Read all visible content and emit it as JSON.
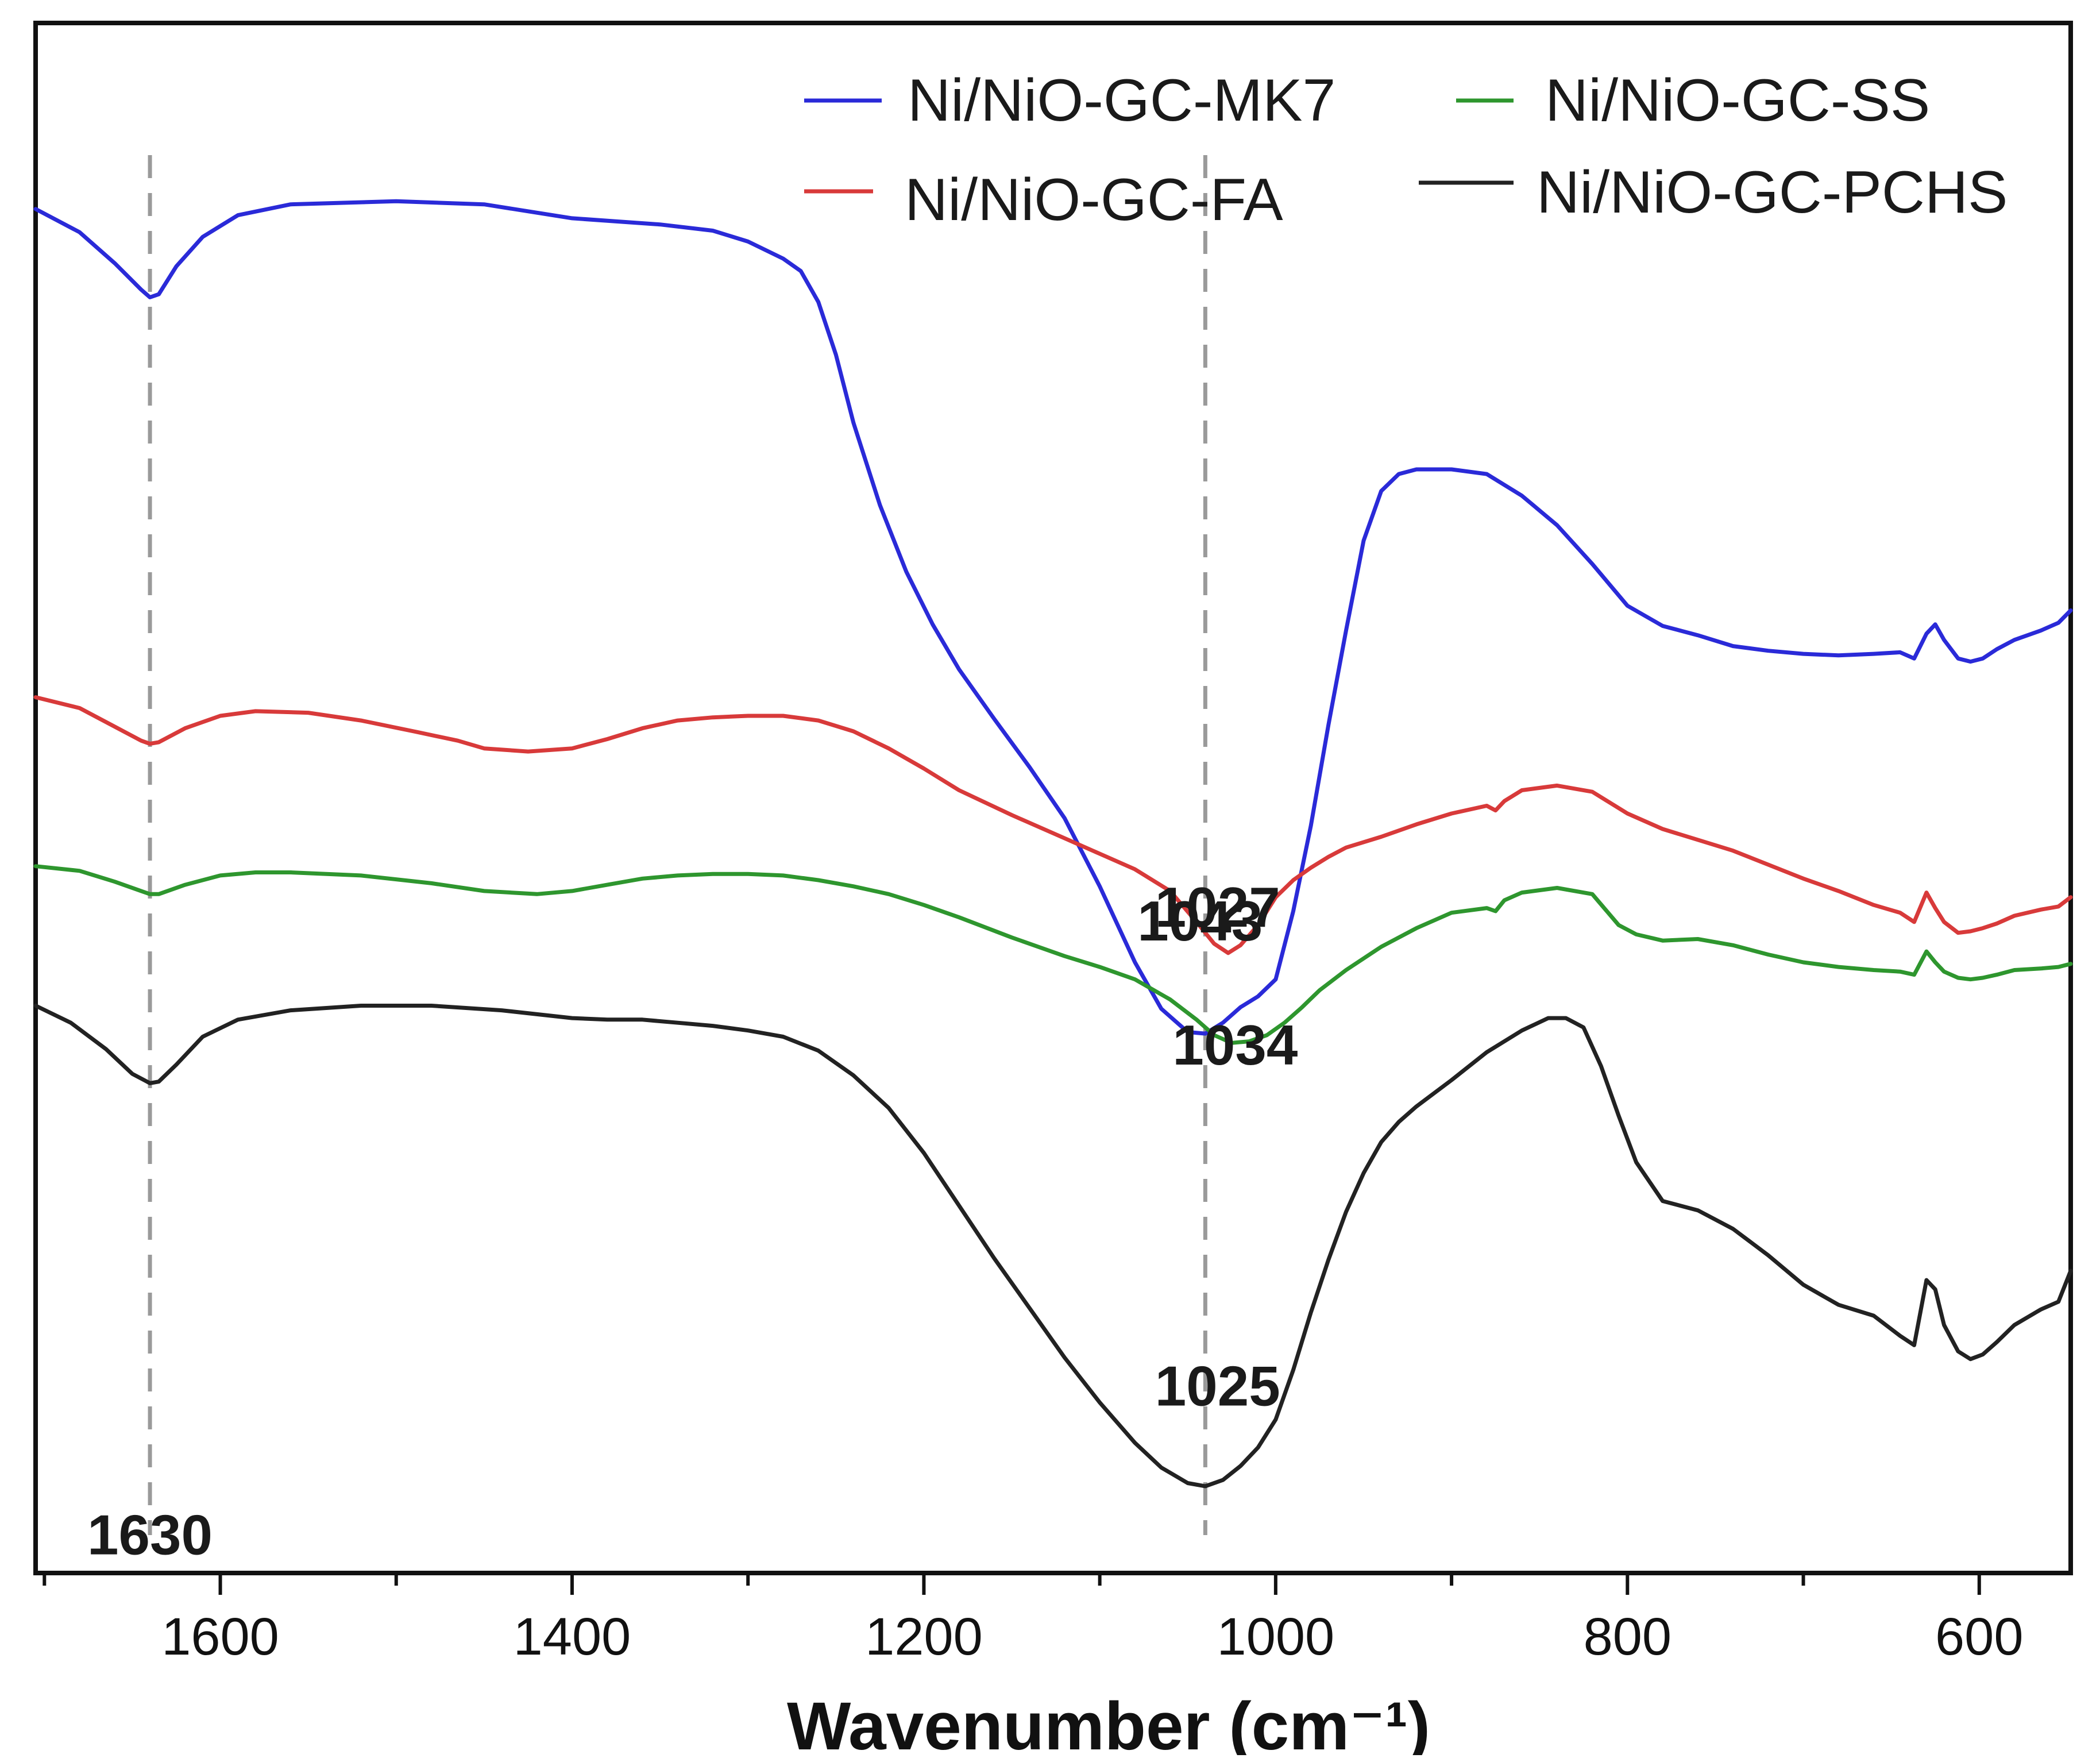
{
  "chart_data": {
    "type": "line",
    "title": "",
    "xlabel": "Wavenumber (cm⁻¹)",
    "ylabel": "",
    "xlim": [
      1705,
      548
    ],
    "ylim": [
      0,
      100
    ],
    "x_reversed": true,
    "grid": false,
    "x_ticks": [
      1600,
      1400,
      1200,
      1000,
      800,
      600
    ],
    "x_tick_labels": [
      "1600",
      "1400",
      "1200",
      "1000",
      "800",
      "600"
    ],
    "colors": {
      "Ni/NiO-GC-MK7": "#2a2ad8",
      "Ni/NiO-GC-FA": "#d83a3a",
      "Ni/NiO-GC-SS": "#2e962e",
      "Ni/NiO-GC-PCHS": "#222222",
      "guide": "#9a9a9a",
      "axis": "#111111"
    },
    "legend": {
      "position": "top-right",
      "entries": [
        "Ni/NiO-GC-MK7",
        "Ni/NiO-GC-SS",
        "Ni/NiO-GC-FA",
        "Ni/NiO-GC-PCHS"
      ]
    },
    "guide_lines": [
      1640,
      1040
    ],
    "series": [
      {
        "name": "Ni/NiO-GC-MK7",
        "x": [
          1705,
          1680,
          1660,
          1645,
          1640,
          1635,
          1625,
          1610,
          1590,
          1560,
          1500,
          1450,
          1400,
          1350,
          1320,
          1300,
          1280,
          1270,
          1260,
          1250,
          1240,
          1225,
          1210,
          1195,
          1180,
          1160,
          1140,
          1120,
          1100,
          1080,
          1065,
          1050,
          1040,
          1030,
          1020,
          1010,
          1000,
          990,
          980,
          970,
          960,
          950,
          940,
          930,
          920,
          910,
          900,
          880,
          860,
          840,
          820,
          800,
          780,
          760,
          740,
          720,
          700,
          680,
          660,
          645,
          637,
          630,
          625,
          620,
          612,
          605,
          598,
          590,
          580,
          565,
          555,
          548
        ],
        "y": [
          88.0,
          86.5,
          84.5,
          82.8,
          82.3,
          82.5,
          84.3,
          86.2,
          87.6,
          88.3,
          88.5,
          88.3,
          87.4,
          87.0,
          86.6,
          85.9,
          84.8,
          84.0,
          82.0,
          78.6,
          74.2,
          68.9,
          64.6,
          61.2,
          58.3,
          55.1,
          52.0,
          48.7,
          44.3,
          39.4,
          36.4,
          34.9,
          34.8,
          35.5,
          36.5,
          37.2,
          38.3,
          42.7,
          48.2,
          54.7,
          60.8,
          66.6,
          69.8,
          70.9,
          71.2,
          71.2,
          71.2,
          70.9,
          69.5,
          67.6,
          65.1,
          62.4,
          61.1,
          60.5,
          59.8,
          59.5,
          59.3,
          59.2,
          59.3,
          59.4,
          59.0,
          60.6,
          61.2,
          60.2,
          59.0,
          58.8,
          59.0,
          59.6,
          60.2,
          60.8,
          61.3,
          62.1
        ]
      },
      {
        "name": "Ni/NiO-GC-FA",
        "x": [
          1705,
          1680,
          1660,
          1645,
          1640,
          1635,
          1620,
          1600,
          1580,
          1550,
          1520,
          1490,
          1465,
          1450,
          1425,
          1400,
          1380,
          1360,
          1340,
          1320,
          1300,
          1280,
          1260,
          1240,
          1220,
          1200,
          1180,
          1150,
          1120,
          1100,
          1080,
          1060,
          1045,
          1035,
          1027,
          1020,
          1010,
          1000,
          990,
          980,
          970,
          960,
          940,
          920,
          900,
          880,
          875,
          870,
          860,
          840,
          820,
          800,
          780,
          760,
          740,
          720,
          700,
          680,
          660,
          645,
          637,
          630,
          625,
          620,
          612,
          605,
          598,
          590,
          580,
          565,
          555,
          548
        ],
        "y": [
          56.5,
          55.8,
          54.6,
          53.7,
          53.5,
          53.6,
          54.5,
          55.3,
          55.6,
          55.5,
          55.0,
          54.3,
          53.7,
          53.2,
          53.0,
          53.2,
          53.8,
          54.5,
          55.0,
          55.2,
          55.3,
          55.3,
          55.0,
          54.3,
          53.2,
          51.9,
          50.5,
          48.9,
          47.4,
          46.4,
          45.4,
          44.0,
          42.0,
          40.6,
          40.0,
          40.5,
          41.8,
          43.6,
          44.7,
          45.5,
          46.2,
          46.8,
          47.5,
          48.3,
          49.0,
          49.5,
          49.2,
          49.8,
          50.5,
          50.8,
          50.4,
          49.0,
          48.0,
          47.3,
          46.6,
          45.7,
          44.8,
          44.0,
          43.1,
          42.6,
          42.0,
          43.9,
          42.9,
          42.0,
          41.3,
          41.4,
          41.6,
          41.9,
          42.4,
          42.8,
          43.0,
          43.6
        ]
      },
      {
        "name": "Ni/NiO-GC-SS",
        "x": [
          1705,
          1680,
          1660,
          1645,
          1640,
          1635,
          1620,
          1600,
          1580,
          1560,
          1520,
          1480,
          1450,
          1420,
          1400,
          1380,
          1360,
          1340,
          1320,
          1300,
          1280,
          1260,
          1240,
          1220,
          1200,
          1180,
          1150,
          1120,
          1100,
          1080,
          1060,
          1045,
          1035,
          1025,
          1015,
          1005,
          995,
          985,
          975,
          960,
          940,
          920,
          900,
          880,
          875,
          870,
          860,
          840,
          820,
          805,
          795,
          780,
          760,
          740,
          720,
          700,
          680,
          660,
          645,
          637,
          630,
          625,
          620,
          612,
          605,
          598,
          590,
          580,
          565,
          555,
          548
        ],
        "y": [
          45.6,
          45.3,
          44.6,
          44.0,
          43.8,
          43.8,
          44.4,
          45.0,
          45.2,
          45.2,
          45.0,
          44.5,
          44.0,
          43.8,
          44.0,
          44.4,
          44.8,
          45.0,
          45.1,
          45.1,
          45.0,
          44.7,
          44.3,
          43.8,
          43.1,
          42.3,
          41.0,
          39.8,
          39.1,
          38.3,
          37.0,
          35.7,
          34.7,
          34.2,
          34.3,
          34.7,
          35.5,
          36.5,
          37.6,
          38.9,
          40.4,
          41.6,
          42.6,
          42.9,
          42.7,
          43.4,
          43.9,
          44.2,
          43.8,
          41.8,
          41.2,
          40.8,
          40.9,
          40.5,
          39.9,
          39.4,
          39.1,
          38.9,
          38.8,
          38.6,
          40.1,
          39.4,
          38.8,
          38.4,
          38.3,
          38.4,
          38.6,
          38.9,
          39.0,
          39.1,
          39.3
        ]
      },
      {
        "name": "Ni/NiO-GC-PCHS",
        "x": [
          1705,
          1685,
          1665,
          1650,
          1640,
          1635,
          1625,
          1610,
          1590,
          1560,
          1520,
          1480,
          1440,
          1400,
          1380,
          1360,
          1340,
          1320,
          1300,
          1280,
          1260,
          1240,
          1220,
          1200,
          1180,
          1160,
          1140,
          1120,
          1100,
          1080,
          1065,
          1050,
          1040,
          1030,
          1020,
          1010,
          1000,
          990,
          980,
          970,
          960,
          950,
          940,
          930,
          920,
          900,
          880,
          860,
          845,
          835,
          825,
          815,
          805,
          795,
          780,
          760,
          740,
          720,
          700,
          680,
          660,
          645,
          637,
          630,
          625,
          620,
          612,
          605,
          598,
          590,
          580,
          565,
          555,
          548
        ],
        "y": [
          36.6,
          35.5,
          33.8,
          32.2,
          31.6,
          31.7,
          32.8,
          34.6,
          35.7,
          36.3,
          36.6,
          36.6,
          36.3,
          35.8,
          35.7,
          35.7,
          35.5,
          35.3,
          35.0,
          34.6,
          33.7,
          32.1,
          30.0,
          27.1,
          23.7,
          20.3,
          17.1,
          13.9,
          11.0,
          8.4,
          6.8,
          5.8,
          5.6,
          6.0,
          6.9,
          8.1,
          9.9,
          13.1,
          16.8,
          20.2,
          23.3,
          25.8,
          27.8,
          29.1,
          30.1,
          31.8,
          33.6,
          35.0,
          35.8,
          35.8,
          35.2,
          32.7,
          29.5,
          26.5,
          24.0,
          23.4,
          22.2,
          20.5,
          18.6,
          17.3,
          16.6,
          15.3,
          14.7,
          18.9,
          18.3,
          16.0,
          14.3,
          13.8,
          14.1,
          14.9,
          16.0,
          17.0,
          17.5,
          19.5
        ]
      }
    ],
    "annotations": [
      {
        "text": "1043",
        "x": 1043,
        "y": 40.8
      },
      {
        "text": "1027",
        "x": 1033,
        "y": 41.7
      },
      {
        "text": "1034",
        "x": 1023,
        "y": 32.8
      },
      {
        "text": "1025",
        "x": 1033,
        "y": 10.8
      },
      {
        "text": "1630",
        "x": 1640,
        "y": 1.2
      }
    ]
  }
}
